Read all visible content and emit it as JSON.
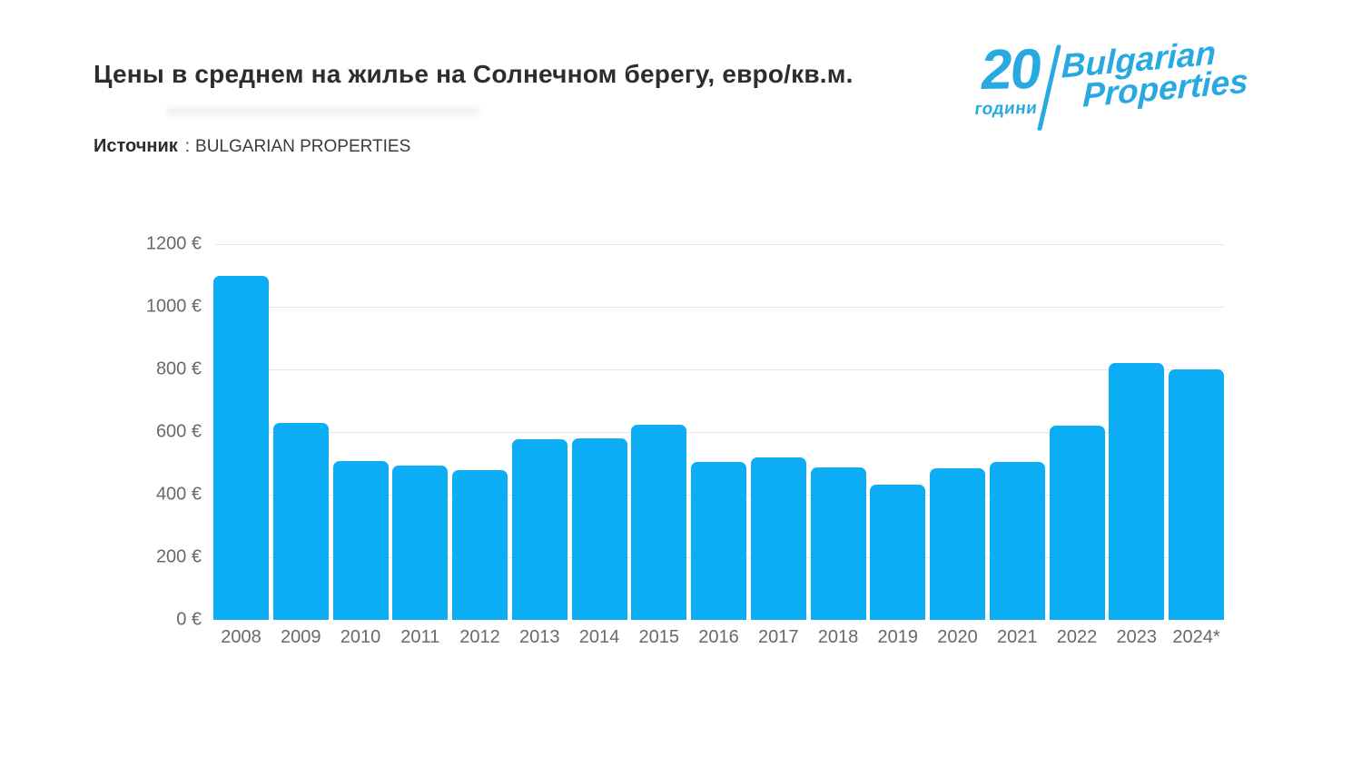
{
  "header": {
    "title": "Цены в среднем на жилье на Солнечном берегу, евро/кв.м.",
    "source_label": "Источник",
    "source_separator": ":",
    "source_value": "BULGARIAN PROPERTIES"
  },
  "logo": {
    "anniversary_number": "20",
    "anniversary_word": "години",
    "brand_line1": "Bulgarian",
    "brand_line2": "Properties",
    "color": "#29a9e1"
  },
  "chart_data": {
    "type": "bar",
    "title": "Цены в среднем на жилье на Солнечном берегу, евро/кв.м.",
    "source": "BULGARIAN PROPERTIES",
    "categories": [
      "2008",
      "2009",
      "2010",
      "2011",
      "2012",
      "2013",
      "2014",
      "2015",
      "2016",
      "2017",
      "2018",
      "2019",
      "2020",
      "2021",
      "2022",
      "2023",
      "2024*"
    ],
    "values": [
      1100,
      630,
      507,
      494,
      477,
      578,
      581,
      624,
      505,
      520,
      487,
      433,
      485,
      504,
      620,
      820,
      800
    ],
    "xlabel": "",
    "ylabel": "евро/кв.м.",
    "ylim": [
      0,
      1200
    ],
    "y_ticks": [
      0,
      200,
      400,
      600,
      800,
      1000,
      1200
    ],
    "y_tick_labels": [
      "0 €",
      "200 €",
      "400 €",
      "600 €",
      "800 €",
      "1000 €",
      "1200 €"
    ],
    "grid": true,
    "legend": false,
    "bar_color": "#0cadf5",
    "gridline_color": "#e7e7e7",
    "axis_text_color": "#6e6861"
  }
}
